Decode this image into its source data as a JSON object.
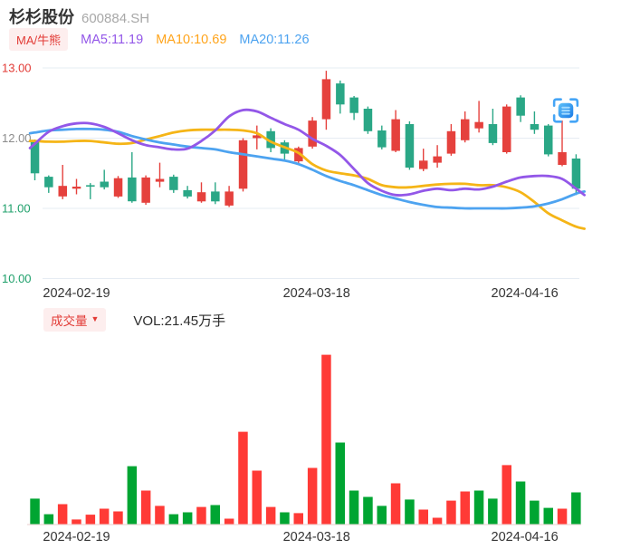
{
  "header": {
    "title": "杉杉股份",
    "code": "600884.SH",
    "indicator_badge": "MA/牛熊",
    "legend": [
      {
        "label": "MA5:11.19",
        "color": "#9357e8"
      },
      {
        "label": "MA10:10.69",
        "color": "#ffa41b"
      },
      {
        "label": "MA20:11.26",
        "color": "#4da3f0"
      }
    ]
  },
  "volume_header": {
    "badge": "成交量",
    "badge_arrow": "▼",
    "vol_label": "VOL:21.45万手"
  },
  "colors": {
    "candle_up": "#e5413d",
    "candle_down": "#2aa786",
    "volume_up": "#ff3a36",
    "volume_down": "#00a532",
    "grid": "#e6ecf3",
    "x_label": "#333333",
    "badge_bg": "#fdeeee",
    "badge_text": "#e23b36",
    "volume_baseline": "#f2dede",
    "scan_icon_blue": "#3f9ff4"
  },
  "chart_data": [
    {
      "type": "candlestick",
      "title": "price",
      "ylim": [
        10,
        13
      ],
      "yticks": [
        {
          "label": "13.00",
          "value": 13,
          "color": "#e23b36"
        },
        {
          "label": "12.00",
          "value": 12,
          "color": "#8c8c8c"
        },
        {
          "label": "11.00",
          "value": 11,
          "color": "#1fa06b"
        },
        {
          "label": "10.00",
          "value": 10,
          "color": "#1fa06b"
        }
      ],
      "xticks": [
        {
          "label": "2024-02-19",
          "index": 3
        },
        {
          "label": "2024-03-18",
          "index": 20.3
        },
        {
          "label": "2024-04-16",
          "index": 35.3
        }
      ],
      "candles": [
        [
          11.95,
          11.5,
          11.98,
          11.4,
          "g"
        ],
        [
          11.45,
          11.3,
          11.47,
          11.22,
          "g"
        ],
        [
          11.17,
          11.32,
          11.62,
          11.13,
          "r"
        ],
        [
          11.28,
          11.31,
          11.42,
          11.2,
          "r"
        ],
        [
          11.33,
          11.31,
          11.36,
          11.13,
          "g"
        ],
        [
          11.38,
          11.3,
          11.55,
          11.27,
          "g"
        ],
        [
          11.17,
          11.43,
          11.46,
          11.15,
          "r"
        ],
        [
          11.44,
          11.1,
          11.8,
          11.08,
          "g"
        ],
        [
          11.08,
          11.44,
          11.47,
          11.05,
          "r"
        ],
        [
          11.38,
          11.42,
          11.65,
          11.3,
          "r"
        ],
        [
          11.45,
          11.26,
          11.48,
          11.22,
          "g"
        ],
        [
          11.26,
          11.17,
          11.32,
          11.14,
          "g"
        ],
        [
          11.1,
          11.23,
          11.37,
          11.08,
          "r"
        ],
        [
          11.24,
          11.1,
          11.37,
          11.06,
          "g"
        ],
        [
          11.04,
          11.24,
          11.32,
          11.02,
          "r"
        ],
        [
          11.28,
          11.97,
          12.0,
          11.24,
          "r"
        ],
        [
          12.0,
          12.04,
          12.18,
          11.84,
          "r"
        ],
        [
          12.1,
          11.86,
          12.14,
          11.8,
          "g"
        ],
        [
          11.94,
          11.78,
          11.97,
          11.68,
          "g"
        ],
        [
          11.67,
          11.86,
          11.88,
          11.62,
          "r"
        ],
        [
          11.88,
          12.25,
          12.3,
          11.85,
          "r"
        ],
        [
          12.27,
          12.84,
          12.96,
          12.12,
          "r"
        ],
        [
          12.78,
          12.48,
          12.82,
          12.35,
          "g"
        ],
        [
          12.58,
          12.36,
          12.6,
          12.26,
          "g"
        ],
        [
          12.42,
          12.1,
          12.45,
          12.06,
          "g"
        ],
        [
          12.11,
          11.87,
          12.18,
          11.84,
          "g"
        ],
        [
          11.82,
          12.27,
          12.4,
          11.8,
          "r"
        ],
        [
          12.2,
          11.58,
          12.24,
          11.55,
          "g"
        ],
        [
          11.56,
          11.68,
          11.85,
          11.53,
          "r"
        ],
        [
          11.65,
          11.74,
          11.9,
          11.58,
          "r"
        ],
        [
          11.78,
          12.1,
          12.2,
          11.75,
          "r"
        ],
        [
          11.97,
          12.27,
          12.38,
          11.94,
          "r"
        ],
        [
          12.14,
          12.23,
          12.53,
          12.08,
          "r"
        ],
        [
          12.2,
          11.93,
          12.42,
          11.9,
          "g"
        ],
        [
          11.8,
          12.45,
          12.48,
          11.78,
          "r"
        ],
        [
          12.58,
          12.32,
          12.61,
          12.23,
          "g"
        ],
        [
          12.2,
          12.12,
          12.38,
          12.06,
          "g"
        ],
        [
          12.18,
          11.77,
          12.2,
          11.74,
          "g"
        ],
        [
          11.62,
          11.8,
          12.25,
          11.6,
          "r"
        ],
        [
          11.71,
          11.28,
          11.77,
          11.19,
          "g"
        ]
      ],
      "ma_lines": [
        {
          "name": "MA10",
          "color": "#f5b517",
          "points": [
            [
              -0.35,
              11.96
            ],
            [
              0,
              11.96
            ],
            [
              1,
              11.95
            ],
            [
              2,
              11.95
            ],
            [
              3,
              11.96
            ],
            [
              4,
              11.96
            ],
            [
              5,
              11.94
            ],
            [
              6,
              11.92
            ],
            [
              7,
              11.93
            ],
            [
              8,
              11.98
            ],
            [
              9,
              12.03
            ],
            [
              10,
              12.08
            ],
            [
              11,
              12.11
            ],
            [
              12,
              12.12
            ],
            [
              13,
              12.12
            ],
            [
              14,
              12.12
            ],
            [
              15,
              12.11
            ],
            [
              16,
              12.07
            ],
            [
              17,
              11.95
            ],
            [
              18,
              11.87
            ],
            [
              19,
              11.79
            ],
            [
              20,
              11.63
            ],
            [
              21,
              11.54
            ],
            [
              22,
              11.5
            ],
            [
              23,
              11.47
            ],
            [
              24,
              11.42
            ],
            [
              25,
              11.33
            ],
            [
              26,
              11.3
            ],
            [
              27,
              11.3
            ],
            [
              28,
              11.32
            ],
            [
              29,
              11.34
            ],
            [
              30,
              11.35
            ],
            [
              31,
              11.35
            ],
            [
              32,
              11.33
            ],
            [
              33,
              11.33
            ],
            [
              34,
              11.3
            ],
            [
              35,
              11.23
            ],
            [
              36,
              11.09
            ],
            [
              37,
              10.93
            ],
            [
              38,
              10.83
            ],
            [
              39,
              10.74
            ],
            [
              39.6,
              10.71
            ]
          ]
        },
        {
          "name": "MA20",
          "color": "#4da3f0",
          "points": [
            [
              -0.35,
              12.07
            ],
            [
              0,
              12.08
            ],
            [
              1,
              12.11
            ],
            [
              2,
              12.12
            ],
            [
              3,
              12.13
            ],
            [
              4,
              12.13
            ],
            [
              5,
              12.12
            ],
            [
              6,
              12.09
            ],
            [
              7,
              12.03
            ],
            [
              8,
              11.98
            ],
            [
              9,
              11.94
            ],
            [
              10,
              11.91
            ],
            [
              11,
              11.88
            ],
            [
              12,
              11.86
            ],
            [
              13,
              11.84
            ],
            [
              14,
              11.8
            ],
            [
              15,
              11.77
            ],
            [
              16,
              11.74
            ],
            [
              17,
              11.71
            ],
            [
              18,
              11.68
            ],
            [
              19,
              11.63
            ],
            [
              20,
              11.55
            ],
            [
              21,
              11.46
            ],
            [
              22,
              11.39
            ],
            [
              23,
              11.33
            ],
            [
              24,
              11.26
            ],
            [
              25,
              11.19
            ],
            [
              26,
              11.14
            ],
            [
              27,
              11.09
            ],
            [
              28,
              11.05
            ],
            [
              29,
              11.02
            ],
            [
              30,
              11.01
            ],
            [
              31,
              11.0
            ],
            [
              32,
              11.0
            ],
            [
              33,
              11.0
            ],
            [
              34,
              11.0
            ],
            [
              35,
              11.01
            ],
            [
              36,
              11.03
            ],
            [
              37,
              11.07
            ],
            [
              38,
              11.13
            ],
            [
              39,
              11.21
            ],
            [
              39.6,
              11.24
            ]
          ]
        },
        {
          "name": "MA5",
          "color": "#9357e8",
          "points": [
            [
              -0.35,
              11.86
            ],
            [
              0,
              11.92
            ],
            [
              1,
              12.09
            ],
            [
              2,
              12.17
            ],
            [
              3,
              12.21
            ],
            [
              4,
              12.21
            ],
            [
              5,
              12.16
            ],
            [
              6,
              12.07
            ],
            [
              7,
              11.97
            ],
            [
              8,
              11.9
            ],
            [
              9,
              11.87
            ],
            [
              10,
              11.84
            ],
            [
              11,
              11.85
            ],
            [
              12,
              11.96
            ],
            [
              13,
              12.11
            ],
            [
              14,
              12.31
            ],
            [
              15,
              12.4
            ],
            [
              16,
              12.38
            ],
            [
              17,
              12.29
            ],
            [
              18,
              12.2
            ],
            [
              19,
              12.12
            ],
            [
              20,
              11.99
            ],
            [
              21,
              11.89
            ],
            [
              22,
              11.76
            ],
            [
              23,
              11.56
            ],
            [
              24,
              11.36
            ],
            [
              25,
              11.25
            ],
            [
              26,
              11.19
            ],
            [
              27,
              11.2
            ],
            [
              28,
              11.25
            ],
            [
              29,
              11.28
            ],
            [
              30,
              11.26
            ],
            [
              31,
              11.28
            ],
            [
              32,
              11.27
            ],
            [
              33,
              11.31
            ],
            [
              34,
              11.38
            ],
            [
              35,
              11.44
            ],
            [
              36,
              11.46
            ],
            [
              37,
              11.46
            ],
            [
              38,
              11.42
            ],
            [
              39,
              11.28
            ],
            [
              39.6,
              11.19
            ]
          ]
        }
      ]
    },
    {
      "type": "bar",
      "title": "volume",
      "unit": "万手",
      "xticks": [
        {
          "label": "2024-02-19",
          "index": 3
        },
        {
          "label": "2024-03-18",
          "index": 20.3
        },
        {
          "label": "2024-04-16",
          "index": 35.3
        }
      ],
      "values": [
        17.2,
        6.7,
        13.5,
        3.1,
        6.4,
        10.4,
        8.6,
        39.2,
        22.7,
        12.3,
        6.7,
        8.0,
        11.6,
        12.9,
        3.7,
        62.5,
        36.2,
        11.6,
        8.0,
        7.4,
        38.0,
        114.6,
        55.2,
        22.7,
        18.4,
        12.3,
        27.6,
        16.6,
        9.8,
        4.3,
        15.9,
        22.1,
        22.7,
        17.2,
        39.9,
        28.8,
        15.9,
        11.0,
        10.4,
        21.45
      ],
      "colors": [
        "g",
        "g",
        "r",
        "r",
        "r",
        "r",
        "r",
        "g",
        "r",
        "r",
        "g",
        "g",
        "r",
        "g",
        "r",
        "r",
        "r",
        "r",
        "g",
        "r",
        "r",
        "r",
        "g",
        "g",
        "g",
        "g",
        "r",
        "g",
        "r",
        "r",
        "r",
        "r",
        "g",
        "g",
        "r",
        "g",
        "g",
        "g",
        "r",
        "g"
      ]
    }
  ]
}
